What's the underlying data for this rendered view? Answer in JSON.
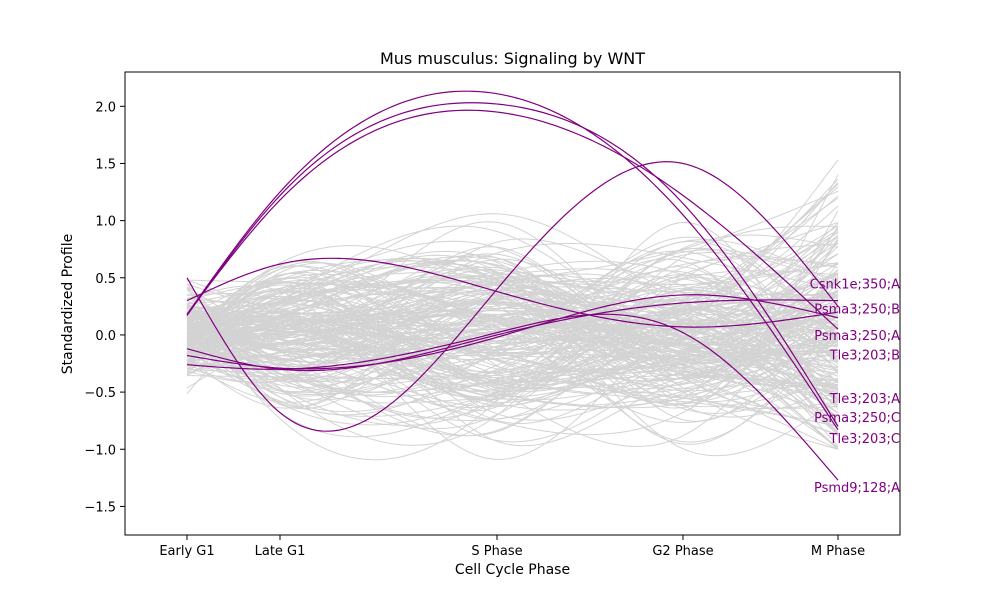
{
  "chart_data": {
    "type": "line",
    "title": "Mus musculus: Signaling by WNT",
    "xlabel": "Cell Cycle Phase",
    "ylabel": "Standardized Profile",
    "categories": [
      "Early G1",
      "Late G1",
      "S Phase",
      "G2 Phase",
      "M Phase"
    ],
    "x": [
      0,
      0.6,
      2,
      3.2,
      4.2
    ],
    "xlim": [
      -0.4,
      4.6
    ],
    "ylim": [
      -1.75,
      2.3
    ],
    "yticks": [
      -1.5,
      -1.0,
      -0.5,
      0.0,
      0.5,
      1.0,
      1.5,
      2.0
    ],
    "ytick_labels": [
      "−1.5",
      "−1.0",
      "−0.5",
      "0.0",
      "0.5",
      "1.0",
      "1.5",
      "2.0"
    ],
    "grid": false,
    "background_color": "#d3d3d3",
    "highlight_color": "#800080",
    "highlighted_series": [
      {
        "name": "Csnk1e;350;A",
        "values": [
          0.18,
          1.25,
          2.11,
          1.05,
          -0.83
        ]
      },
      {
        "name": "Psma3;250;B",
        "values": [
          0.17,
          1.22,
          2.02,
          1.15,
          -0.8
        ]
      },
      {
        "name": "Psma3;250;A",
        "values": [
          0.18,
          1.18,
          1.95,
          1.22,
          0.05
        ]
      },
      {
        "name": "Tle3;203;B",
        "values": [
          0.3,
          0.62,
          0.38,
          0.07,
          0.2
        ]
      },
      {
        "name": "Tle3;203;A",
        "values": [
          0.5,
          -0.68,
          0.4,
          1.5,
          0.25
        ]
      },
      {
        "name": "Psma3;250;C",
        "values": [
          -0.12,
          -0.3,
          0.0,
          0.28,
          0.3
        ]
      },
      {
        "name": "Tle3;203;C",
        "values": [
          -0.18,
          -0.29,
          -0.02,
          0.35,
          0.15
        ]
      },
      {
        "name": "Psmd9;128;A",
        "values": [
          -0.26,
          -0.3,
          0.02,
          0.02,
          -1.27
        ]
      }
    ],
    "highlighted_labels": [
      {
        "text": "Csnk1e;350;A",
        "y": 0.45
      },
      {
        "text": "Psma3;250;B",
        "y": 0.23
      },
      {
        "text": "Psma3;250;A",
        "y": 0.0
      },
      {
        "text": "Tle3;203;B",
        "y": -0.17
      },
      {
        "text": "Tle3;203;A",
        "y": -0.55
      },
      {
        "text": "Psma3;250;C",
        "y": -0.72
      },
      {
        "text": "Tle3;203;C",
        "y": -0.9
      },
      {
        "text": "Psmd9;128;A",
        "y": -1.33
      }
    ]
  }
}
